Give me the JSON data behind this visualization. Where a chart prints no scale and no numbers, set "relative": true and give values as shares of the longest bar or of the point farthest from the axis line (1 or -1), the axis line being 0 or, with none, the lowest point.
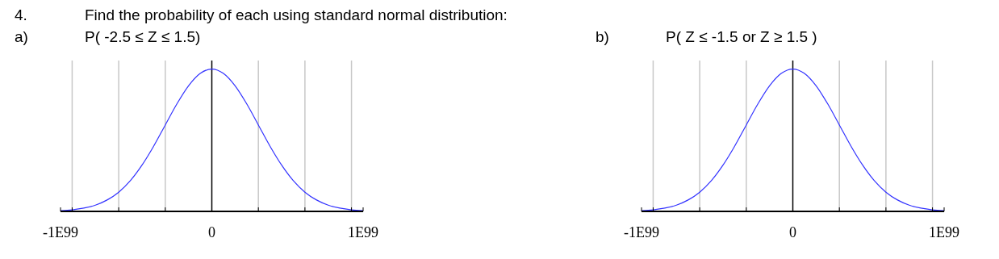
{
  "chart_data": [
    {
      "type": "line",
      "title": "P( -2.5 ≤ Z ≤ 1.5)",
      "annotations": [
        "4.",
        "Find the probability of each using standard normal distribution:",
        "a)"
      ],
      "relative": true,
      "categories": [
        "-1E99",
        null,
        null,
        null,
        null,
        null,
        null,
        null,
        null,
        null,
        null,
        null,
        null,
        "0",
        null,
        null,
        null,
        null,
        null,
        null,
        null,
        null,
        null,
        null,
        null,
        null,
        "1E99"
      ],
      "series": [
        {
          "color": "#3333ff",
          "values": [
            0.005,
            0.011,
            0.023,
            0.044,
            0.08,
            0.135,
            0.216,
            0.325,
            0.458,
            0.607,
            0.755,
            0.882,
            0.969,
            1,
            0.969,
            0.882,
            0.755,
            0.607,
            0.458,
            0.325,
            0.216,
            0.135,
            0.08,
            0.044,
            0.023,
            0.011,
            0.005
          ]
        }
      ],
      "grid": "x",
      "marker": "none",
      "line_style": "solid",
      "ref_lines": [
        {
          "axis": "x",
          "value": "0",
          "color": "#000000"
        }
      ]
    },
    {
      "type": "line",
      "title": "P( Z ≤ -1.5 or Z ≥ 1.5 )",
      "annotations": [
        "b)"
      ],
      "relative": true,
      "categories": [
        "-1E99",
        null,
        null,
        null,
        null,
        null,
        null,
        null,
        null,
        null,
        null,
        null,
        null,
        "0",
        null,
        null,
        null,
        null,
        null,
        null,
        null,
        null,
        null,
        null,
        null,
        null,
        "1E99"
      ],
      "series": [
        {
          "color": "#3333ff",
          "values": [
            0.005,
            0.011,
            0.023,
            0.044,
            0.08,
            0.135,
            0.216,
            0.325,
            0.458,
            0.607,
            0.755,
            0.882,
            0.969,
            1,
            0.969,
            0.882,
            0.755,
            0.607,
            0.458,
            0.325,
            0.216,
            0.135,
            0.08,
            0.044,
            0.023,
            0.011,
            0.005
          ]
        }
      ],
      "grid": "x",
      "marker": "none",
      "line_style": "solid",
      "ref_lines": [
        {
          "axis": "x",
          "value": "0",
          "color": "#000000"
        }
      ]
    }
  ]
}
